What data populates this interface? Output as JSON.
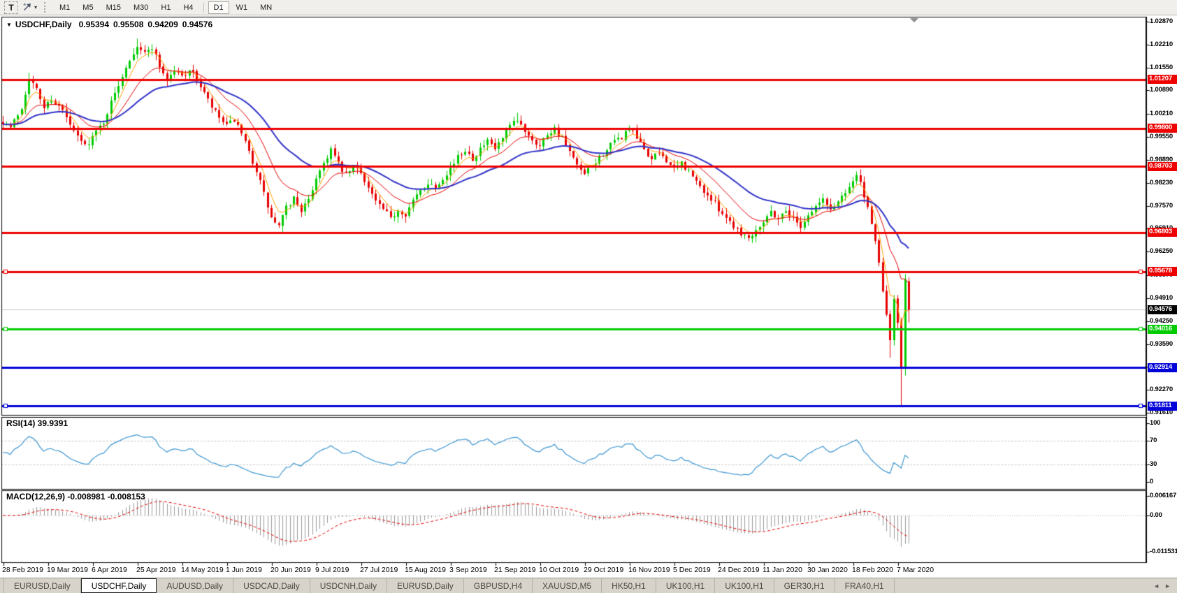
{
  "toolbar": {
    "text_tool_label": "T",
    "timeframes": [
      "M1",
      "M5",
      "M15",
      "M30",
      "H1",
      "H4",
      "D1",
      "W1",
      "MN"
    ],
    "active_timeframe": "D1",
    "dropdown_caret": "▾"
  },
  "chart": {
    "collapse_caret": "▼",
    "title_symbol": "USDCHF,Daily",
    "ohlc": {
      "open": "0.95394",
      "high": "0.95508",
      "low": "0.94209",
      "close": "0.94576"
    },
    "price_axis_ticks": [
      {
        "label": "1.02870",
        "value": 1.0287
      },
      {
        "label": "1.02210",
        "value": 1.0221
      },
      {
        "label": "1.01550",
        "value": 1.0155
      },
      {
        "label": "1.00890",
        "value": 1.0089
      },
      {
        "label": "1.00210",
        "value": 1.0021
      },
      {
        "label": "0.99550",
        "value": 0.9955
      },
      {
        "label": "0.98890",
        "value": 0.9889
      },
      {
        "label": "0.98230",
        "value": 0.9823
      },
      {
        "label": "0.97570",
        "value": 0.9757
      },
      {
        "label": "0.96910",
        "value": 0.9691
      },
      {
        "label": "0.96250",
        "value": 0.9625
      },
      {
        "label": "0.95570",
        "value": 0.9557
      },
      {
        "label": "0.94910",
        "value": 0.9491
      },
      {
        "label": "0.94250",
        "value": 0.9425
      },
      {
        "label": "0.93590",
        "value": 0.9359
      },
      {
        "label": "0.92930",
        "value": 0.9293
      },
      {
        "label": "0.92270",
        "value": 0.9227
      },
      {
        "label": "0.91610",
        "value": 0.9161
      }
    ],
    "level_badges": [
      {
        "label": "1.01207",
        "price": 1.01207,
        "bg": "#EE0000"
      },
      {
        "label": "0.99800",
        "price": 0.998,
        "bg": "#EE0000"
      },
      {
        "label": "0.98703",
        "price": 0.98703,
        "bg": "#EE0000"
      },
      {
        "label": "0.96803",
        "price": 0.96803,
        "bg": "#EE0000"
      },
      {
        "label": "0.95678",
        "price": 0.95678,
        "bg": "#EE0000"
      },
      {
        "label": "0.94016",
        "price": 0.94016,
        "bg": "#00CC00"
      },
      {
        "label": "0.92914",
        "price": 0.92914,
        "bg": "#0000D8"
      },
      {
        "label": "0.91811",
        "price": 0.91811,
        "bg": "#0000D8"
      }
    ],
    "current_price_badge": {
      "label": "0.94576",
      "price": 0.94576,
      "bg": "#000000"
    },
    "date_axis": [
      "28 Feb 2019",
      "19 Mar 2019",
      "6 Apr 2019",
      "25 Apr 2019",
      "14 May 2019",
      "1 Jun 2019",
      "20 Jun 2019",
      "9 Jul 2019",
      "27 Jul 2019",
      "15 Aug 2019",
      "3 Sep 2019",
      "21 Sep 2019",
      "10 Oct 2019",
      "29 Oct 2019",
      "16 Nov 2019",
      "5 Dec 2019",
      "24 Dec 2019",
      "11 Jan 2020",
      "30 Jan 2020",
      "18 Feb 2020",
      "7 Mar 2020"
    ]
  },
  "rsi": {
    "label": "RSI(14) 39.9391",
    "ticks": [
      {
        "label": "100",
        "value": 100
      },
      {
        "label": "70",
        "value": 70
      },
      {
        "label": "30",
        "value": 30
      },
      {
        "label": "0",
        "value": 0
      }
    ]
  },
  "macd": {
    "label": "MACD(12,26,9) -0.008981 -0.008153",
    "ticks": [
      {
        "label": "0.006167",
        "value": 0.006167
      },
      {
        "label": "0.00",
        "value": 0
      },
      {
        "label": "-0.011531",
        "value": -0.011531
      }
    ]
  },
  "tabs": {
    "items": [
      {
        "label": "EURUSD,Daily",
        "active": false
      },
      {
        "label": "USDCHF,Daily",
        "active": true
      },
      {
        "label": "AUDUSD,Daily",
        "active": false
      },
      {
        "label": "USDCAD,Daily",
        "active": false
      },
      {
        "label": "USDCNH,Daily",
        "active": false
      },
      {
        "label": "EURUSD,Daily",
        "active": false
      },
      {
        "label": "GBPUSD,H4",
        "active": false
      },
      {
        "label": "XAUUSD,M5",
        "active": false
      },
      {
        "label": "HK50,H1",
        "active": false
      },
      {
        "label": "UK100,H1",
        "active": false
      },
      {
        "label": "UK100,H1",
        "active": false
      },
      {
        "label": "GER30,H1",
        "active": false
      },
      {
        "label": "FRA40,H1",
        "active": false
      }
    ],
    "scroll_left_icon": "◄",
    "scroll_right_icon": "►"
  },
  "chart_data": {
    "type": "candlestick",
    "symbol": "USDCHF",
    "timeframe": "Daily",
    "title": "USDCHF,Daily",
    "last_candle": {
      "open": 0.95394,
      "high": 0.95508,
      "low": 0.94209,
      "close": 0.94576
    },
    "y_axis_range": [
      0.9161,
      1.0287
    ],
    "x_axis_dates": [
      "28 Feb 2019",
      "19 Mar 2019",
      "6 Apr 2019",
      "25 Apr 2019",
      "14 May 2019",
      "1 Jun 2019",
      "20 Jun 2019",
      "9 Jul 2019",
      "27 Jul 2019",
      "15 Aug 2019",
      "3 Sep 2019",
      "21 Sep 2019",
      "10 Oct 2019",
      "29 Oct 2019",
      "16 Nov 2019",
      "5 Dec 2019",
      "24 Dec 2019",
      "11 Jan 2020",
      "30 Jan 2020",
      "18 Feb 2020",
      "7 Mar 2020"
    ],
    "candles_per_date_tick": 12,
    "candle_count": 244,
    "up_color": "#00CC00",
    "down_color": "#E80000",
    "price_path_anchors": [
      [
        0,
        1.0
      ],
      [
        2,
        0.9982
      ],
      [
        5,
        1.004
      ],
      [
        7,
        1.0125
      ],
      [
        9,
        1.009
      ],
      [
        11,
        1.004
      ],
      [
        13,
        1.0065
      ],
      [
        16,
        1.003
      ],
      [
        19,
        0.9968
      ],
      [
        22,
        0.993
      ],
      [
        24,
        0.9955
      ],
      [
        27,
        1.0
      ],
      [
        30,
        1.008
      ],
      [
        33,
        1.016
      ],
      [
        36,
        1.022
      ],
      [
        38,
        1.0195
      ],
      [
        40,
        1.0215
      ],
      [
        42,
        1.016
      ],
      [
        44,
        1.012
      ],
      [
        46,
        1.0145
      ],
      [
        48,
        1.013
      ],
      [
        50,
        1.015
      ],
      [
        52,
        1.012
      ],
      [
        54,
        1.008
      ],
      [
        56,
        1.004
      ],
      [
        58,
        1.001
      ],
      [
        60,
        0.9985
      ],
      [
        62,
        1.0005
      ],
      [
        64,
        0.996
      ],
      [
        66,
        0.991
      ],
      [
        68,
        0.986
      ],
      [
        70,
        0.979
      ],
      [
        72,
        0.972
      ],
      [
        74,
        0.9697
      ],
      [
        76,
        0.975
      ],
      [
        78,
        0.978
      ],
      [
        80,
        0.9745
      ],
      [
        82,
        0.977
      ],
      [
        84,
        0.984
      ],
      [
        86,
        0.988
      ],
      [
        88,
        0.992
      ],
      [
        90,
        0.9875
      ],
      [
        92,
        0.9845
      ],
      [
        94,
        0.987
      ],
      [
        96,
        0.9855
      ],
      [
        98,
        0.981
      ],
      [
        100,
        0.977
      ],
      [
        102,
        0.9745
      ],
      [
        104,
        0.972
      ],
      [
        106,
        0.9745
      ],
      [
        108,
        0.9735
      ],
      [
        110,
        0.977
      ],
      [
        112,
        0.98
      ],
      [
        114,
        0.9825
      ],
      [
        116,
        0.981
      ],
      [
        118,
        0.984
      ],
      [
        120,
        0.9865
      ],
      [
        122,
        0.9895
      ],
      [
        124,
        0.992
      ],
      [
        126,
        0.9895
      ],
      [
        128,
        0.992
      ],
      [
        130,
        0.994
      ],
      [
        132,
        0.992
      ],
      [
        134,
        0.995
      ],
      [
        136,
        0.9985
      ],
      [
        138,
        1.0
      ],
      [
        140,
        0.9975
      ],
      [
        142,
        0.995
      ],
      [
        144,
        0.993
      ],
      [
        146,
        0.9965
      ],
      [
        148,
        0.998
      ],
      [
        150,
        0.995
      ],
      [
        152,
        0.991
      ],
      [
        154,
        0.987
      ],
      [
        156,
        0.9845
      ],
      [
        158,
        0.987
      ],
      [
        160,
        0.9895
      ],
      [
        162,
        0.992
      ],
      [
        164,
        0.994
      ],
      [
        166,
        0.9955
      ],
      [
        168,
        0.998
      ],
      [
        170,
        0.995
      ],
      [
        172,
        0.992
      ],
      [
        174,
        0.989
      ],
      [
        176,
        0.991
      ],
      [
        178,
        0.989
      ],
      [
        180,
        0.986
      ],
      [
        182,
        0.988
      ],
      [
        184,
        0.9855
      ],
      [
        186,
        0.9825
      ],
      [
        188,
        0.98
      ],
      [
        190,
        0.9775
      ],
      [
        192,
        0.975
      ],
      [
        194,
        0.9725
      ],
      [
        196,
        0.97
      ],
      [
        198,
        0.968
      ],
      [
        200,
        0.9665
      ],
      [
        202,
        0.969
      ],
      [
        204,
        0.9715
      ],
      [
        206,
        0.974
      ],
      [
        208,
        0.972
      ],
      [
        210,
        0.9745
      ],
      [
        212,
        0.972
      ],
      [
        214,
        0.97
      ],
      [
        216,
        0.973
      ],
      [
        218,
        0.9755
      ],
      [
        220,
        0.9775
      ],
      [
        222,
        0.9745
      ],
      [
        224,
        0.977
      ],
      [
        226,
        0.98
      ],
      [
        228,
        0.983
      ],
      [
        229,
        0.9845
      ],
      [
        230,
        0.982
      ],
      [
        231,
        0.9785
      ],
      [
        232,
        0.9745
      ],
      [
        233,
        0.97
      ],
      [
        234,
        0.965
      ],
      [
        235,
        0.96
      ],
      [
        236,
        0.9505
      ],
      [
        237,
        0.9445
      ],
      [
        238,
        0.937
      ],
      [
        239,
        0.949
      ],
      [
        240,
        0.942
      ],
      [
        241,
        0.929
      ],
      [
        242,
        0.9545
      ],
      [
        243,
        0.94576
      ]
    ],
    "wick_overrides": [
      [
        7,
        1.014,
        null
      ],
      [
        36,
        1.0238,
        null
      ],
      [
        74,
        null,
        0.9693
      ],
      [
        138,
        1.0025,
        null
      ],
      [
        200,
        null,
        0.9655
      ],
      [
        229,
        0.9856,
        null
      ]
    ],
    "candle_overrides": {
      "238": [
        0.9445,
        0.9455,
        0.932,
        0.937
      ],
      "239": [
        0.937,
        0.95,
        0.9355,
        0.949
      ],
      "240": [
        0.949,
        0.95,
        0.94,
        0.942
      ],
      "241": [
        0.942,
        0.9435,
        0.9182,
        0.929
      ],
      "242": [
        0.929,
        0.956,
        0.9268,
        0.9545
      ],
      "243": [
        0.95394,
        0.95508,
        0.94209,
        0.94576
      ]
    },
    "moving_averages": [
      {
        "name": "fast-ma",
        "period": 5,
        "color": "#FFA000",
        "width": 1
      },
      {
        "name": "mid-ma",
        "period": 14,
        "color": "#E60000",
        "width": 1
      },
      {
        "name": "slow-ma",
        "period": 34,
        "color": "#3032C8",
        "width": 2
      }
    ],
    "horizontal_levels": [
      {
        "price": 1.01207,
        "color": "#EE0000",
        "width": 3,
        "handles": false
      },
      {
        "price": 0.998,
        "color": "#EE0000",
        "width": 3,
        "handles": false
      },
      {
        "price": 0.98703,
        "color": "#EE0000",
        "width": 3,
        "handles": false
      },
      {
        "price": 0.96803,
        "color": "#EE0000",
        "width": 3,
        "handles": false
      },
      {
        "price": 0.95678,
        "color": "#EE0000",
        "width": 3,
        "handles": true
      },
      {
        "price": 0.94016,
        "color": "#00CC00",
        "width": 3,
        "handles": true
      },
      {
        "price": 0.92914,
        "color": "#0000D8",
        "width": 3,
        "handles": false
      },
      {
        "price": 0.91811,
        "color": "#0000D8",
        "width": 3,
        "handles": true
      }
    ],
    "current_price_line": {
      "price": 0.94576,
      "color": "#C8C8C8"
    },
    "indicators": [
      {
        "name": "RSI",
        "period": 14,
        "value": 39.9391,
        "levels": [
          70,
          30
        ],
        "range": [
          0,
          100
        ],
        "color": "#3C96D2"
      },
      {
        "name": "MACD",
        "fast": 12,
        "slow": 26,
        "signal": 9,
        "values": [
          -0.008981,
          -0.008153
        ],
        "histogram_color": "#9A9A9A",
        "signal_color": "#E60000"
      }
    ]
  }
}
